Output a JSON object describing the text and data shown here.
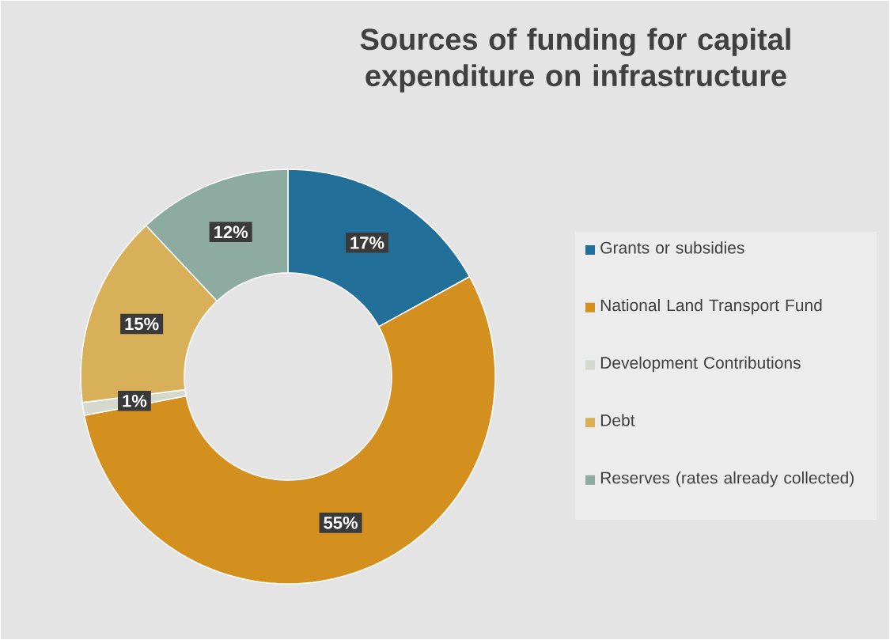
{
  "chart_data": {
    "type": "donut",
    "title": "Sources of funding for capital expenditure on infrastructure",
    "categories": [
      "Grants or subsidies",
      "National Land Transport Fund",
      "Development Contributions",
      "Debt",
      "Reserves (rates already collected)"
    ],
    "values": [
      17,
      55,
      1,
      15,
      12
    ],
    "value_labels": [
      "17%",
      "55%",
      "1%",
      "15%",
      "12%"
    ],
    "colors": [
      "#22709a",
      "#d4901f",
      "#d5d8cc",
      "#d8b05a",
      "#8eaba2"
    ],
    "legend": "right"
  }
}
